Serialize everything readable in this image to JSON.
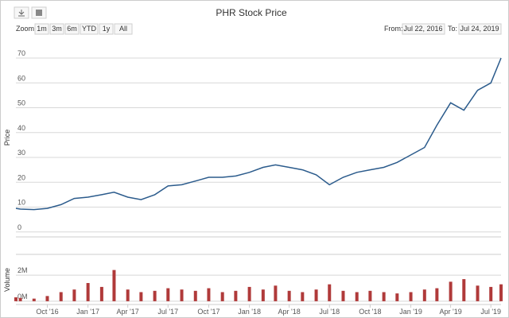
{
  "chart_data": {
    "type": "stock",
    "title": "PHR Stock Price",
    "zoom_label": "Zoom",
    "range_buttons": [
      "1m",
      "3m",
      "6m",
      "YTD",
      "1y",
      "All"
    ],
    "from_label": "From:",
    "to_label": "To:",
    "from_date": "Jul 22, 2016",
    "to_date": "Jul 24, 2019",
    "x": [
      "2016-07-22",
      "2016-08",
      "2016-09",
      "2016-10",
      "2016-11",
      "2016-12",
      "2017-01",
      "2017-02",
      "2017-03",
      "2017-04",
      "2017-05",
      "2017-06",
      "2017-07",
      "2017-08",
      "2017-09",
      "2017-10",
      "2017-11",
      "2017-12",
      "2018-01",
      "2018-02",
      "2018-03",
      "2018-04",
      "2018-05",
      "2018-06",
      "2018-07",
      "2018-08",
      "2018-09",
      "2018-10",
      "2018-11",
      "2018-12",
      "2019-01",
      "2019-02",
      "2019-03",
      "2019-04",
      "2019-05",
      "2019-06",
      "2019-07",
      "2019-07-24"
    ],
    "xlim": [
      "2016-07-22",
      "2019-07-24"
    ],
    "xticks": [
      {
        "value": "2016-10",
        "label": "Oct '16"
      },
      {
        "value": "2017-01",
        "label": "Jan '17"
      },
      {
        "value": "2017-04",
        "label": "Apr '17"
      },
      {
        "value": "2017-07",
        "label": "Jul '17"
      },
      {
        "value": "2017-10",
        "label": "Oct '17"
      },
      {
        "value": "2018-01",
        "label": "Jan '18"
      },
      {
        "value": "2018-04",
        "label": "Apr '18"
      },
      {
        "value": "2018-07",
        "label": "Jul '18"
      },
      {
        "value": "2018-10",
        "label": "Oct '18"
      },
      {
        "value": "2019-01",
        "label": "Jan '19"
      },
      {
        "value": "2019-04",
        "label": "Apr '19"
      },
      {
        "value": "2019-07",
        "label": "Jul '19"
      }
    ],
    "price": {
      "name": "Price",
      "color": "#2b5b8c",
      "values": [
        9.5,
        9.2,
        9.0,
        9.5,
        11,
        13.5,
        14,
        15,
        16,
        14,
        13,
        15,
        18.5,
        19,
        20.5,
        22,
        22,
        22.5,
        24,
        26,
        27,
        26,
        25,
        23,
        19,
        22,
        24,
        25,
        26,
        28,
        31,
        34,
        43,
        52,
        49,
        57,
        60,
        70
      ],
      "ylim": [
        -2,
        78
      ],
      "yticks": [
        0,
        10,
        20,
        30,
        40,
        50,
        60,
        70
      ]
    },
    "volume": {
      "name": "Volume",
      "color": "#b03a3a",
      "values": [
        300000,
        250000,
        200000,
        400000,
        700000,
        900000,
        1400000,
        1100000,
        2400000,
        900000,
        700000,
        800000,
        1000000,
        900000,
        800000,
        1000000,
        700000,
        800000,
        1100000,
        900000,
        1200000,
        800000,
        700000,
        900000,
        1300000,
        800000,
        700000,
        800000,
        700000,
        600000,
        700000,
        900000,
        1000000,
        1500000,
        1700000,
        1200000,
        1100000,
        1300000
      ],
      "ylim": [
        -250000,
        3600000
      ],
      "yticks": [
        {
          "value": 0,
          "label": "0M"
        },
        {
          "value": 2000000,
          "label": "2M"
        }
      ]
    },
    "grid": true
  }
}
